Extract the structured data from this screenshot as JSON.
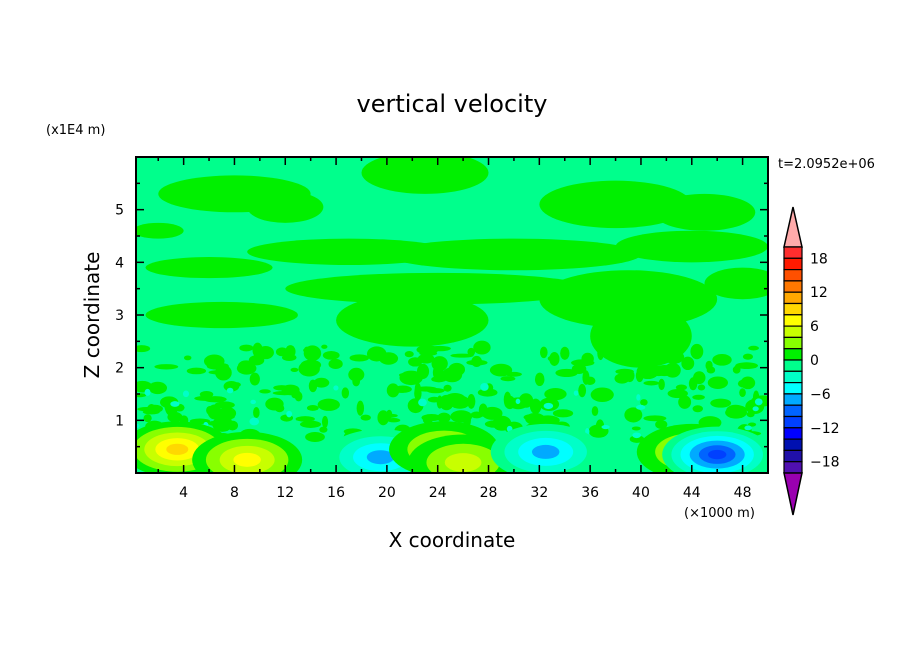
{
  "chart_data": {
    "type": "heatmap",
    "subtype": "filled-contour",
    "title": "vertical velocity",
    "xlabel": "X coordinate",
    "ylabel": "Z coordinate",
    "x_unit": "(×1000 m)",
    "y_unit": "(x1E4 m)",
    "time_label": "t=2.0952e+06",
    "xlim": [
      0.25,
      50
    ],
    "ylim": [
      0,
      6
    ],
    "x_ticks": [
      4,
      8,
      12,
      16,
      20,
      24,
      28,
      32,
      36,
      40,
      44,
      48
    ],
    "y_ticks": [
      1,
      2,
      3,
      4,
      5
    ],
    "x_tick_labels": [
      "4",
      "8",
      "12",
      "16",
      "20",
      "24",
      "28",
      "32",
      "36",
      "40",
      "44",
      "48"
    ],
    "y_tick_labels": [
      "1",
      "2",
      "3",
      "4",
      "5"
    ],
    "background_level_color": "#00ff8c",
    "colorbar": {
      "levels": [
        -18,
        -16,
        -14,
        -12,
        -10,
        -8,
        -6,
        -4,
        -2,
        0,
        2,
        4,
        6,
        8,
        10,
        12,
        14,
        16,
        18
      ],
      "labels": [
        "18",
        "12",
        "6",
        "0",
        "-6",
        "-12",
        "-18"
      ],
      "label_values": [
        18,
        12,
        6,
        0,
        -6,
        -12,
        -18
      ],
      "colors_top_to_bottom": [
        "#ff2e2e",
        "#ff1a00",
        "#ff5000",
        "#ff7800",
        "#ffa800",
        "#ffd800",
        "#ffff00",
        "#c8ff00",
        "#88ff00",
        "#00f000",
        "#00ff8c",
        "#00ffc8",
        "#00ffff",
        "#00aaff",
        "#0064ff",
        "#0040ff",
        "#0000ff",
        "#0010b0",
        "#2010a8",
        "#5010b0"
      ],
      "over_color": "#ffaaaa",
      "under_color": "#9a00b0"
    },
    "features": [
      {
        "x": 3.5,
        "z": 0.45,
        "value": 7
      },
      {
        "x": 9,
        "z": 0.25,
        "value": 5
      },
      {
        "x": 19.5,
        "z": 0.3,
        "value": -5
      },
      {
        "x": 24.5,
        "z": 0.45,
        "value": 3
      },
      {
        "x": 26,
        "z": 0.2,
        "value": 3
      },
      {
        "x": 32.5,
        "z": 0.4,
        "value": -5
      },
      {
        "x": 44,
        "z": 0.4,
        "value": 3
      },
      {
        "x": 46,
        "z": 0.35,
        "value": -9
      }
    ]
  }
}
